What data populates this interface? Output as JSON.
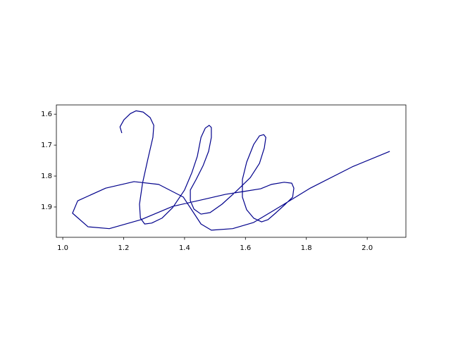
{
  "chart_data": {
    "type": "line",
    "color": "#00008b",
    "x": [
      1.194,
      1.188,
      1.201,
      1.222,
      1.241,
      1.264,
      1.287,
      1.299,
      1.296,
      1.28,
      1.262,
      1.252,
      1.255,
      1.269,
      1.292,
      1.326,
      1.361,
      1.4,
      1.424,
      1.442,
      1.454,
      1.468,
      1.481,
      1.488,
      1.488,
      1.479,
      1.461,
      1.438,
      1.419,
      1.419,
      1.431,
      1.454,
      1.484,
      1.523,
      1.569,
      1.616,
      1.646,
      1.662,
      1.667,
      1.66,
      1.646,
      1.627,
      1.604,
      1.59,
      1.59,
      1.604,
      1.627,
      1.653,
      1.674,
      1.701,
      1.731,
      1.755,
      1.759,
      1.752,
      1.727,
      1.685,
      1.65,
      1.593,
      1.535,
      1.465,
      1.361,
      1.257,
      1.153,
      1.083,
      1.032,
      1.049,
      1.141,
      1.234,
      1.315,
      1.396,
      1.454,
      1.488,
      1.558,
      1.627,
      1.72,
      1.813,
      1.951,
      2.074
    ],
    "values": [
      1.661,
      1.641,
      1.618,
      1.598,
      1.589,
      1.593,
      1.611,
      1.636,
      1.675,
      1.743,
      1.823,
      1.891,
      1.936,
      1.955,
      1.952,
      1.936,
      1.902,
      1.845,
      1.789,
      1.736,
      1.675,
      1.645,
      1.636,
      1.643,
      1.675,
      1.72,
      1.766,
      1.811,
      1.845,
      1.88,
      1.907,
      1.923,
      1.918,
      1.891,
      1.85,
      1.805,
      1.759,
      1.709,
      1.675,
      1.666,
      1.67,
      1.698,
      1.755,
      1.811,
      1.868,
      1.909,
      1.936,
      1.948,
      1.941,
      1.918,
      1.891,
      1.868,
      1.839,
      1.823,
      1.82,
      1.827,
      1.841,
      1.85,
      1.859,
      1.875,
      1.898,
      1.941,
      1.97,
      1.964,
      1.92,
      1.88,
      1.839,
      1.818,
      1.827,
      1.868,
      1.955,
      1.975,
      1.97,
      1.95,
      1.895,
      1.839,
      1.77,
      1.72
    ],
    "xlim": [
      0.979,
      2.127
    ],
    "ylim": [
      1.998,
      1.57
    ],
    "xticks": [
      {
        "value": 1.0,
        "label": "1.0"
      },
      1.2,
      1.4,
      1.6,
      1.8,
      {
        "value": 2.0,
        "label": "2.0"
      }
    ],
    "yticks": [
      1.6,
      1.7,
      1.8,
      1.9
    ]
  }
}
